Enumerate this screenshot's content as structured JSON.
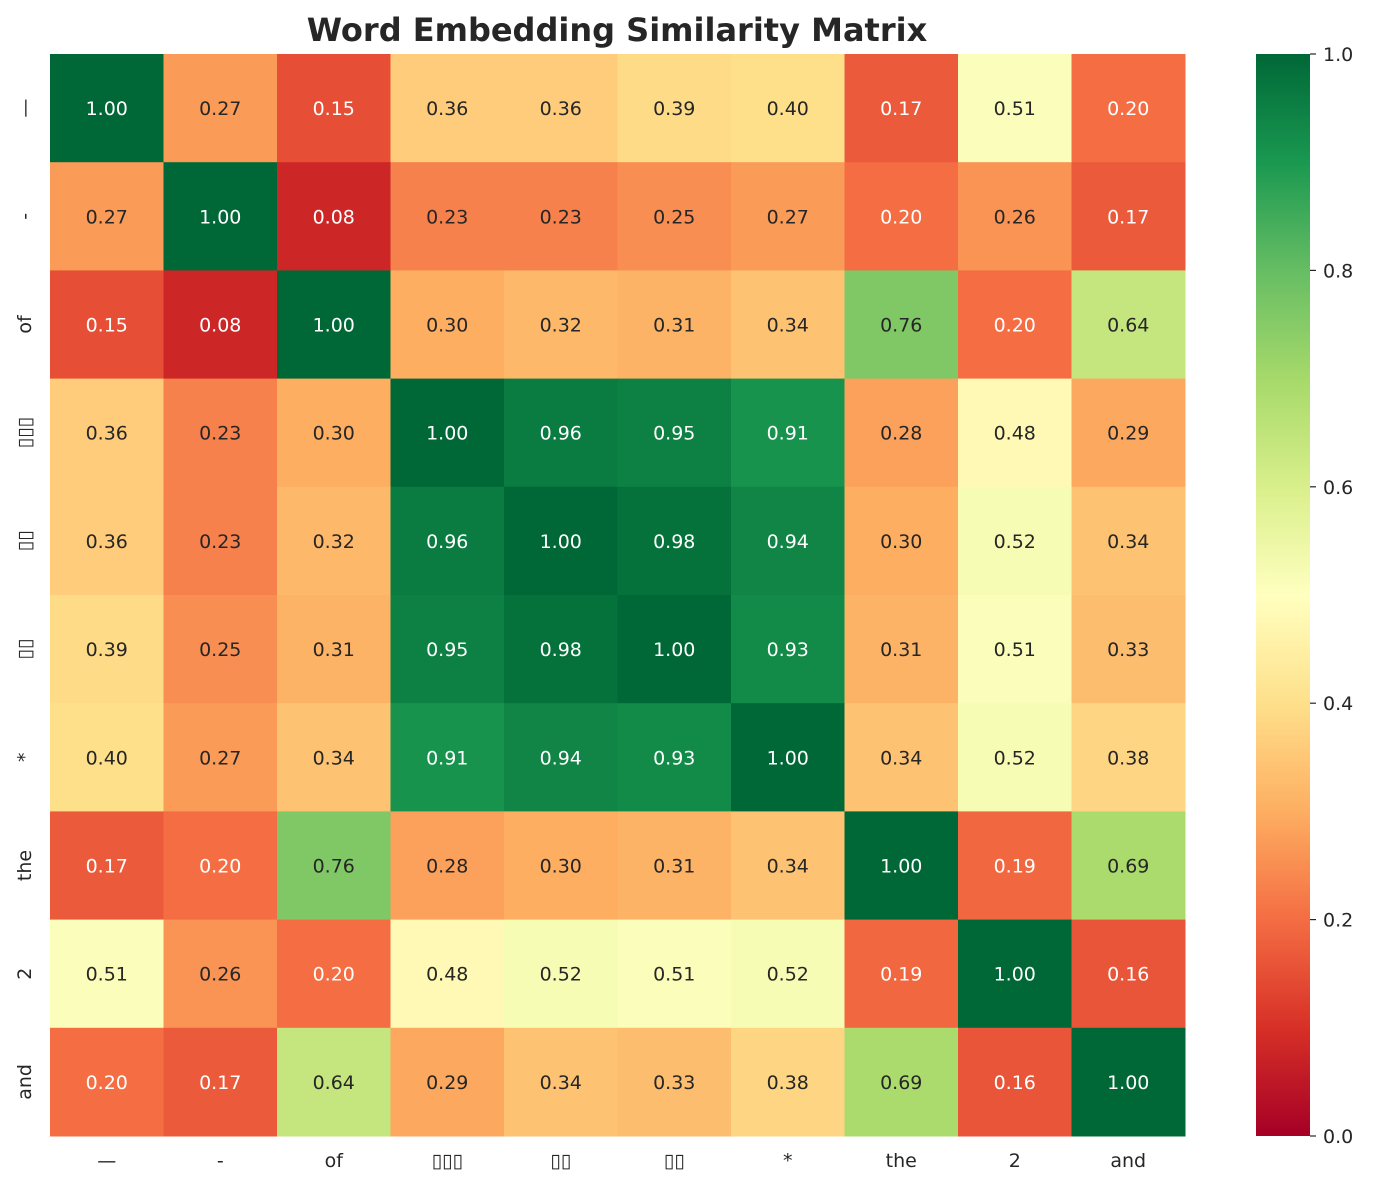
{
  "chart_data": {
    "type": "heatmap",
    "title": "Word Embedding Similarity Matrix",
    "xlabel": "",
    "ylabel": "",
    "categories": [
      "—",
      "-",
      "of",
      "▯▯▯",
      "▯▯",
      "▯▯",
      "*",
      "the",
      "2",
      "and"
    ],
    "rows": [
      "—",
      "-",
      "of",
      "▯▯▯",
      "▯▯",
      "▯▯",
      "*",
      "the",
      "2",
      "and"
    ],
    "values": [
      [
        1.0,
        0.27,
        0.15,
        0.36,
        0.36,
        0.39,
        0.4,
        0.17,
        0.51,
        0.2
      ],
      [
        0.27,
        1.0,
        0.08,
        0.23,
        0.23,
        0.25,
        0.27,
        0.2,
        0.26,
        0.17
      ],
      [
        0.15,
        0.08,
        1.0,
        0.3,
        0.32,
        0.31,
        0.34,
        0.76,
        0.2,
        0.64
      ],
      [
        0.36,
        0.23,
        0.3,
        1.0,
        0.96,
        0.95,
        0.91,
        0.28,
        0.48,
        0.29
      ],
      [
        0.36,
        0.23,
        0.32,
        0.96,
        1.0,
        0.98,
        0.94,
        0.3,
        0.52,
        0.34
      ],
      [
        0.39,
        0.25,
        0.31,
        0.95,
        0.98,
        1.0,
        0.93,
        0.31,
        0.51,
        0.33
      ],
      [
        0.4,
        0.27,
        0.34,
        0.91,
        0.94,
        0.93,
        1.0,
        0.34,
        0.52,
        0.38
      ],
      [
        0.17,
        0.2,
        0.76,
        0.28,
        0.3,
        0.31,
        0.34,
        1.0,
        0.19,
        0.69
      ],
      [
        0.51,
        0.26,
        0.2,
        0.48,
        0.52,
        0.51,
        0.52,
        0.19,
        1.0,
        0.16
      ],
      [
        0.2,
        0.17,
        0.64,
        0.29,
        0.34,
        0.33,
        0.38,
        0.69,
        0.16,
        1.0
      ]
    ],
    "value_format": "2 decimals",
    "colormap": "RdYlGn",
    "colorbar": {
      "range": [
        0.0,
        1.0
      ],
      "ticks": [
        "0.0",
        "0.2",
        "0.4",
        "0.6",
        "0.8",
        "1.0"
      ]
    },
    "grid": false,
    "legend": "colorbar-right"
  }
}
